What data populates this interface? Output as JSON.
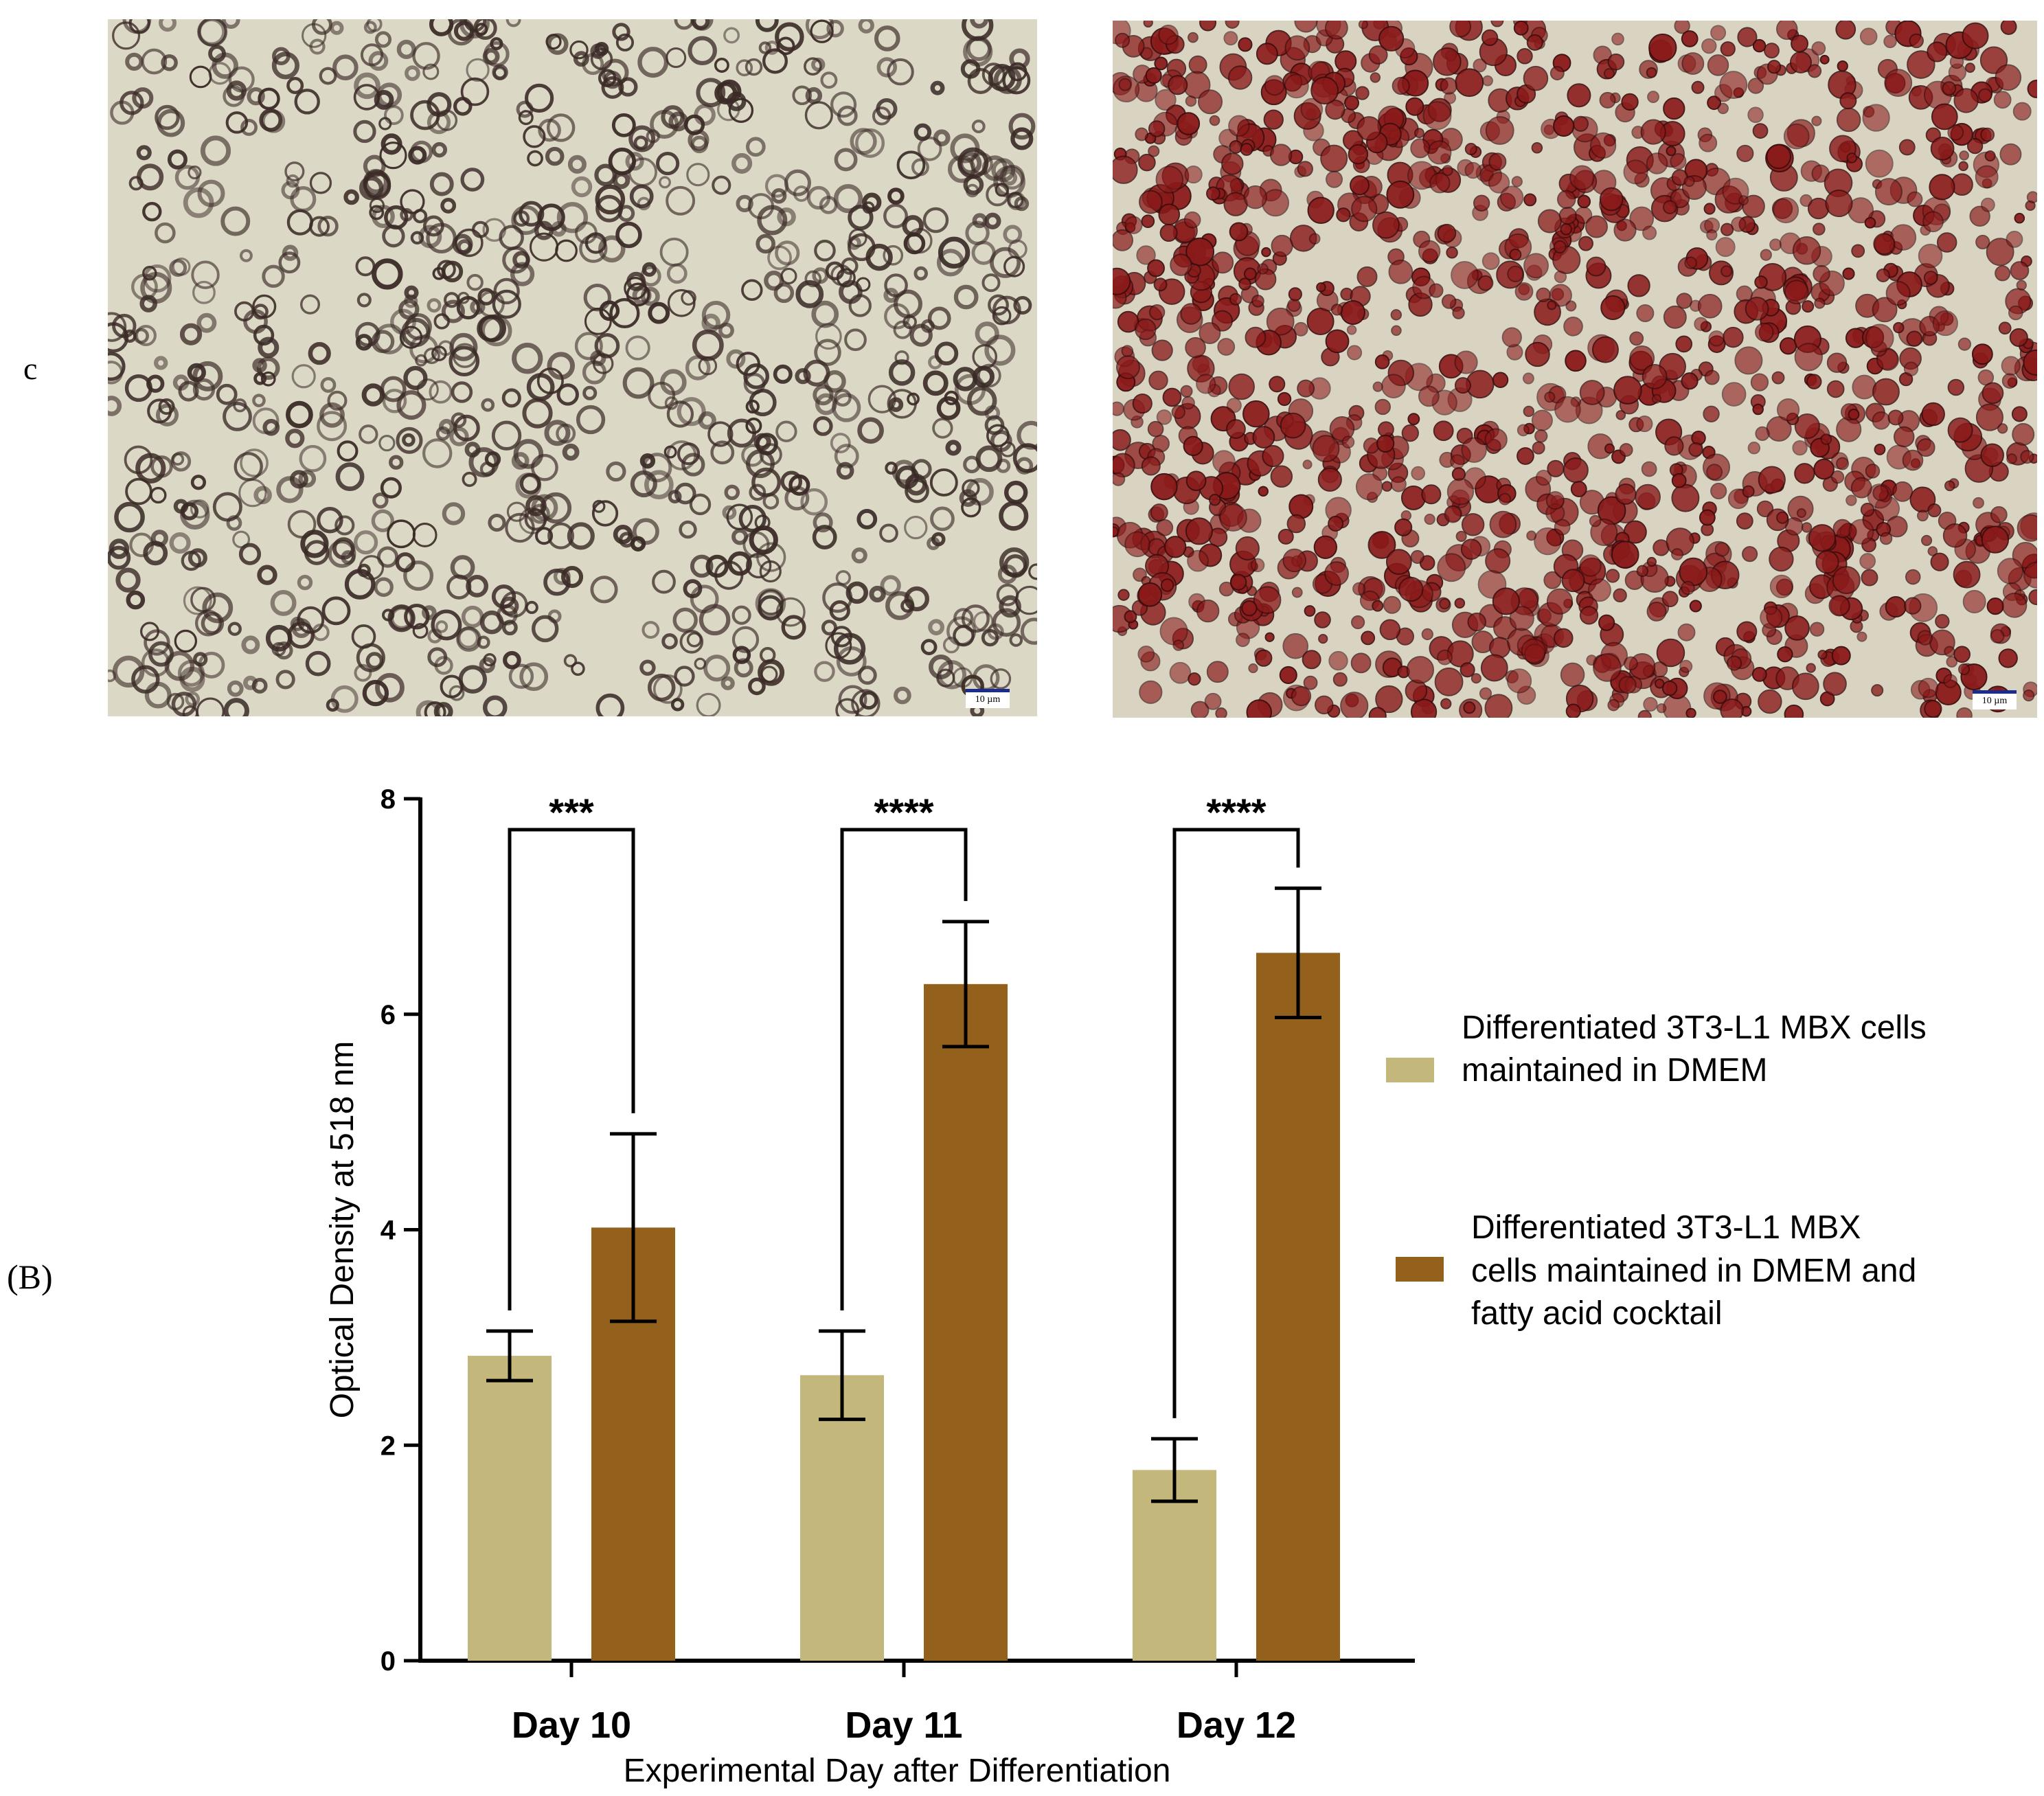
{
  "panels": {
    "top_label": "c",
    "bottom_label": "(B)"
  },
  "micrographs": [
    {
      "scale_label": "10 µm",
      "stain": "sparse",
      "cell_color": "#3a2a26"
    },
    {
      "scale_label": "10 µm",
      "stain": "dense",
      "cell_color": "#8a1a1a"
    }
  ],
  "chart_data": {
    "type": "bar",
    "categories": [
      "Day 10",
      "Day 11",
      "Day 12"
    ],
    "xlabel": "Experimental Day after Differentiation",
    "ylabel": "Optical Density at 518 nm",
    "ylim": [
      0,
      8
    ],
    "yticks": [
      0,
      2,
      4,
      6,
      8
    ],
    "legend_position": "right",
    "series": [
      {
        "name": "Differentiated 3T3-L1 MBX cells maintained in DMEM",
        "legend_lines": [
          "Differentiated 3T3-L1 MBX cells",
          "maintained in DMEM"
        ],
        "color": "#c4b77c",
        "values": [
          2.83,
          2.65,
          1.77
        ],
        "errors": [
          0.23,
          0.41,
          0.29
        ]
      },
      {
        "name": "Differentiated 3T3-L1 MBX cells maintained in DMEM and fatty acid cocktail",
        "legend_lines": [
          "Differentiated 3T3-L1 MBX",
          "cells maintained in DMEM and",
          "fatty acid cocktail"
        ],
        "color": "#94611d",
        "values": [
          4.02,
          6.28,
          6.57
        ],
        "errors": [
          0.87,
          0.58,
          0.6
        ]
      }
    ],
    "significance": [
      "***",
      "****",
      "****"
    ]
  }
}
